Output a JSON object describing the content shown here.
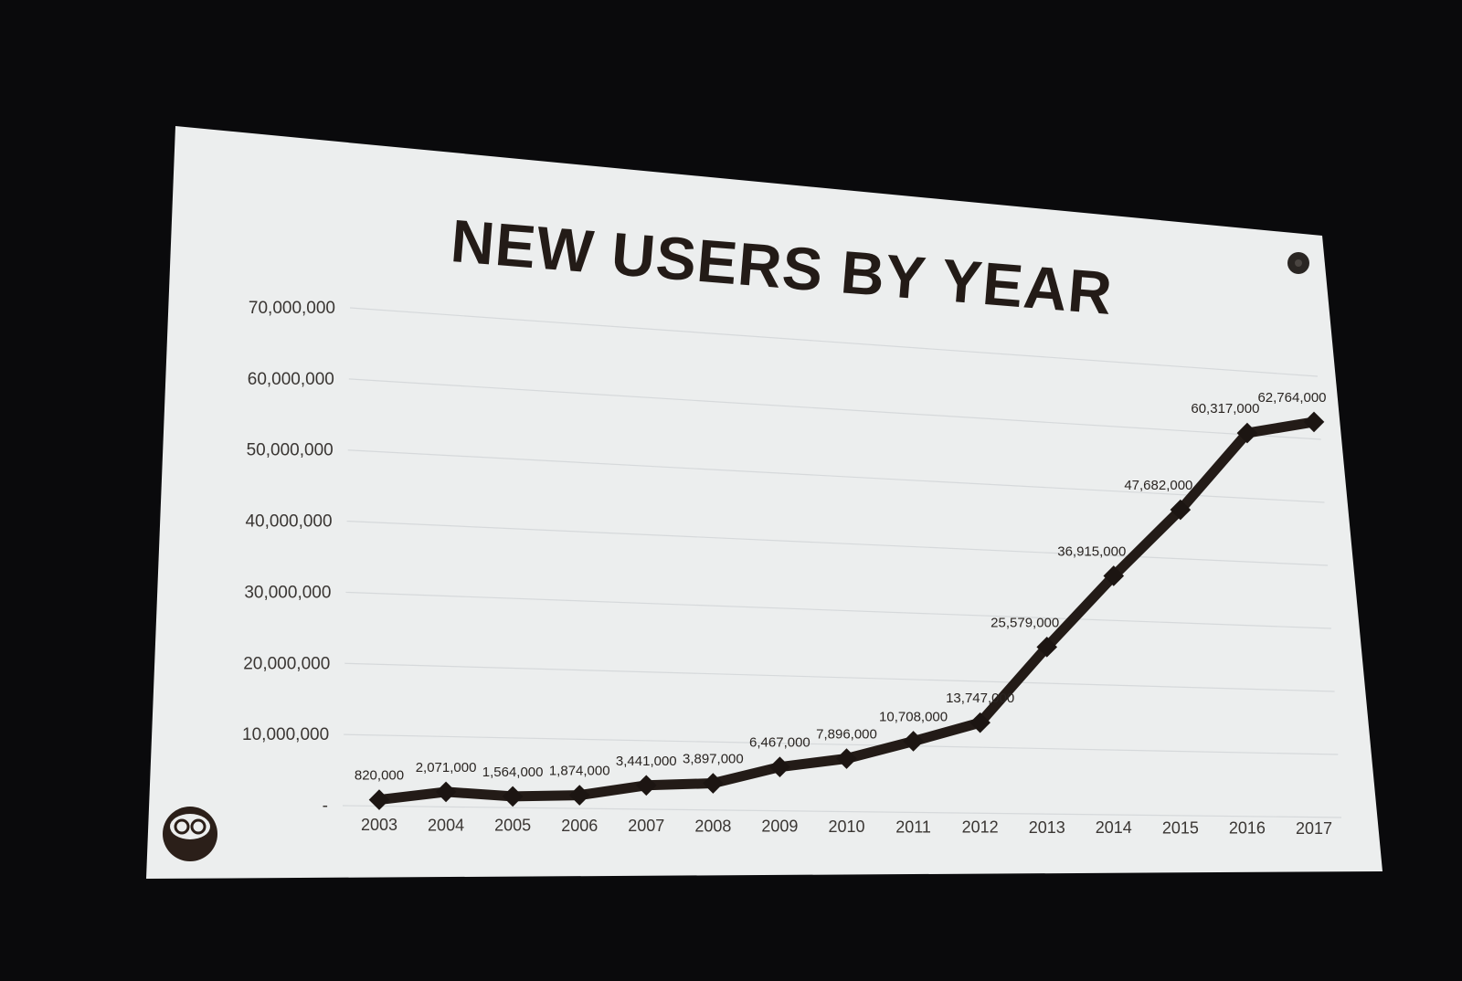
{
  "slide": {
    "background": "#eceeee",
    "ink": "#231b17",
    "logo_icon": "bearded-face-logo-icon",
    "corner_icon": "dark-circle-icon"
  },
  "chart_data": {
    "type": "line",
    "title": "NEW USERS BY YEAR",
    "xlabel": "",
    "ylabel": "",
    "categories": [
      "2003",
      "2004",
      "2005",
      "2006",
      "2007",
      "2008",
      "2009",
      "2010",
      "2011",
      "2012",
      "2013",
      "2014",
      "2015",
      "2016",
      "2017"
    ],
    "series": [
      {
        "values": [
          820000,
          2071000,
          1564000,
          1874000,
          3441000,
          3897000,
          6467000,
          7896000,
          10708000,
          13747000,
          25579000,
          36915000,
          47682000,
          60317000,
          62764000
        ],
        "labels": [
          "820,000",
          "2,071,000",
          "1,564,000",
          "1,874,000",
          "3,441,000",
          "3,897,000",
          "6,467,000",
          "7,896,000",
          "10,708,000",
          "13,747,000",
          "25,579,000",
          "36,915,000",
          "47,682,000",
          "60,317,000",
          "62,764,000"
        ]
      }
    ],
    "yticks": [
      "-",
      "10,000,000",
      "20,000,000",
      "30,000,000",
      "40,000,000",
      "50,000,000",
      "60,000,000",
      "70,000,000"
    ],
    "ylim": [
      0,
      70000000
    ],
    "grid": true,
    "legend": "none"
  }
}
